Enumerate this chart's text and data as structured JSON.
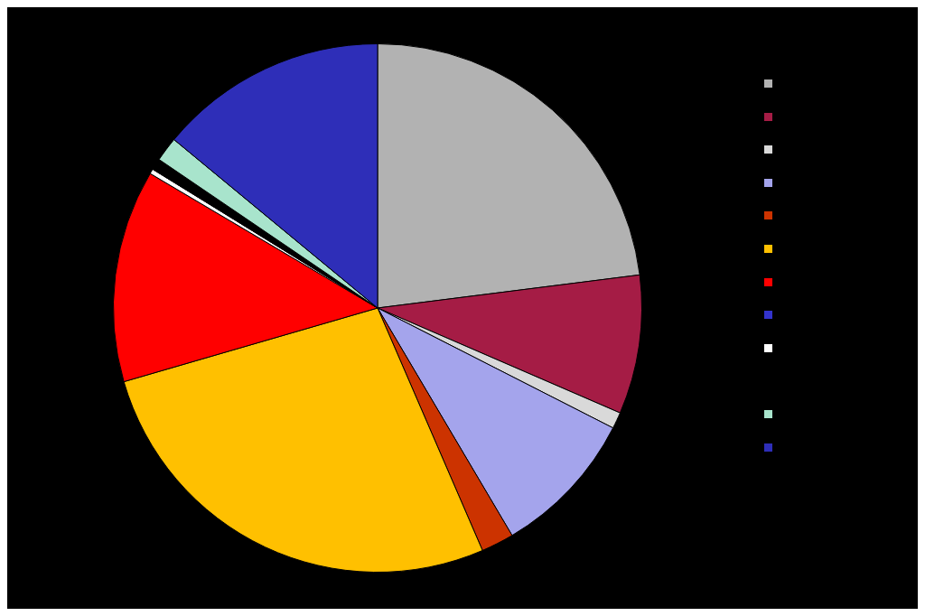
{
  "chart_data": {
    "type": "pie",
    "categories": [
      null,
      null,
      null,
      null,
      null,
      null,
      null,
      null,
      null,
      null,
      null,
      null
    ],
    "values": [
      23,
      8.5,
      1,
      9,
      2,
      27,
      13,
      0,
      0.3,
      0.7,
      1.5,
      14
    ],
    "colors": [
      "#b2b2b2",
      "#a51c45",
      "#d9d9d9",
      "#a4a4ec",
      "#cc3300",
      "#ffc000",
      "#ff0000",
      "#3333cc",
      "#ffffff",
      "#000000",
      "#a8e4cc",
      "#2e2eb8"
    ]
  }
}
